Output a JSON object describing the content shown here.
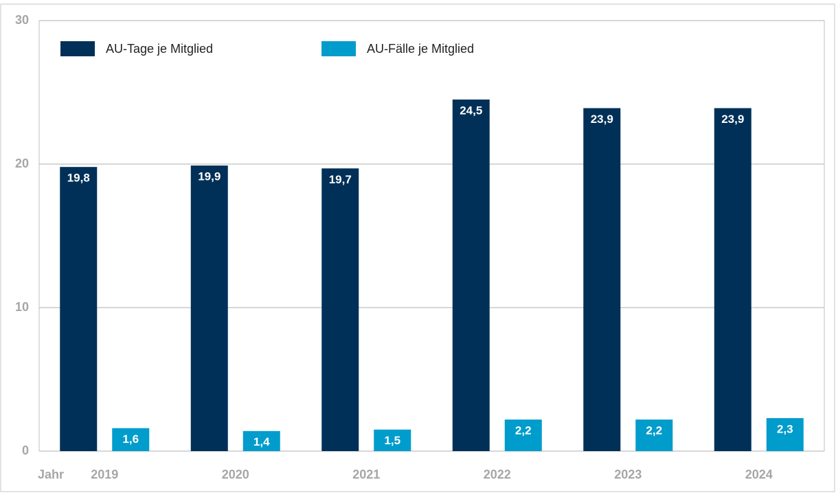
{
  "chart_data": {
    "type": "bar",
    "x_label": "Jahr",
    "categories": [
      "2019",
      "2020",
      "2021",
      "2022",
      "2023",
      "2024"
    ],
    "series": [
      {
        "name": "AU-Tage je Mitglied",
        "color": "#003057",
        "values": [
          19.8,
          19.9,
          19.7,
          24.5,
          23.9,
          23.9
        ],
        "value_labels": [
          "19,8",
          "19,9",
          "19,7",
          "24,5",
          "23,9",
          "23,9"
        ]
      },
      {
        "name": "AU-Fälle je Mitglied",
        "color": "#009ccc",
        "values": [
          1.6,
          1.4,
          1.5,
          2.2,
          2.2,
          2.3
        ],
        "value_labels": [
          "1,6",
          "1,4",
          "1,5",
          "2,2",
          "2,2",
          "2,3"
        ]
      }
    ],
    "ylim": [
      0,
      30
    ],
    "yticks": [
      0,
      10,
      20,
      30
    ],
    "grid": true
  }
}
